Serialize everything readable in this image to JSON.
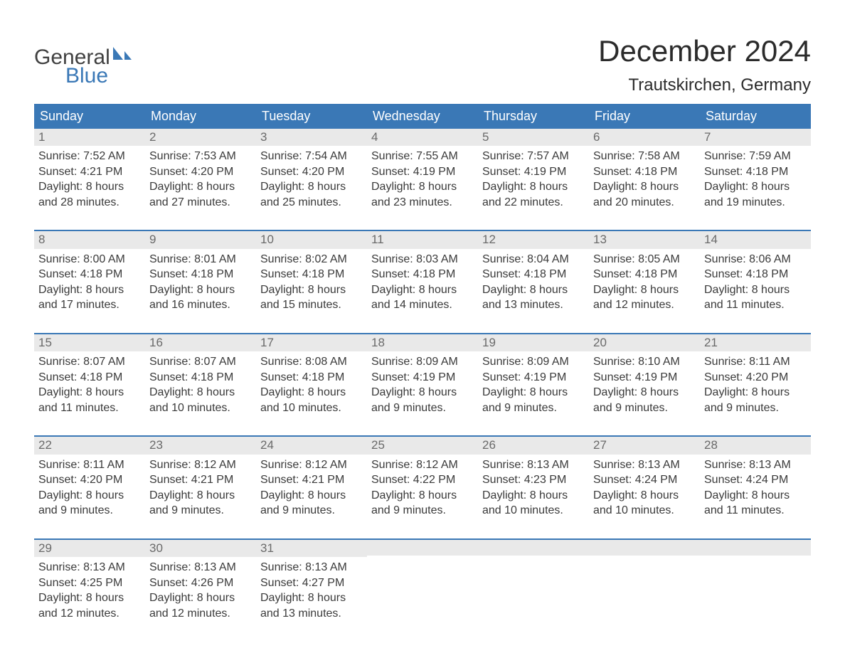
{
  "brand": {
    "word1": "General",
    "word2": "Blue",
    "flag_color": "#3a78b6",
    "text_color_1": "#414141",
    "text_color_2": "#3a78b6"
  },
  "header": {
    "title": "December 2024",
    "location": "Trautskirchen, Germany"
  },
  "colors": {
    "header_bg": "#3a78b6",
    "header_text": "#ffffff",
    "daynum_bg": "#e9e9e9",
    "daynum_text": "#6a6a6a",
    "body_text": "#3a3a3a",
    "page_bg": "#ffffff",
    "row_border": "#3a78b6"
  },
  "weekdays": [
    "Sunday",
    "Monday",
    "Tuesday",
    "Wednesday",
    "Thursday",
    "Friday",
    "Saturday"
  ],
  "weeks": [
    [
      {
        "n": "1",
        "sr": "7:52 AM",
        "ss": "4:21 PM",
        "dl": "8 hours and 28 minutes."
      },
      {
        "n": "2",
        "sr": "7:53 AM",
        "ss": "4:20 PM",
        "dl": "8 hours and 27 minutes."
      },
      {
        "n": "3",
        "sr": "7:54 AM",
        "ss": "4:20 PM",
        "dl": "8 hours and 25 minutes."
      },
      {
        "n": "4",
        "sr": "7:55 AM",
        "ss": "4:19 PM",
        "dl": "8 hours and 23 minutes."
      },
      {
        "n": "5",
        "sr": "7:57 AM",
        "ss": "4:19 PM",
        "dl": "8 hours and 22 minutes."
      },
      {
        "n": "6",
        "sr": "7:58 AM",
        "ss": "4:18 PM",
        "dl": "8 hours and 20 minutes."
      },
      {
        "n": "7",
        "sr": "7:59 AM",
        "ss": "4:18 PM",
        "dl": "8 hours and 19 minutes."
      }
    ],
    [
      {
        "n": "8",
        "sr": "8:00 AM",
        "ss": "4:18 PM",
        "dl": "8 hours and 17 minutes."
      },
      {
        "n": "9",
        "sr": "8:01 AM",
        "ss": "4:18 PM",
        "dl": "8 hours and 16 minutes."
      },
      {
        "n": "10",
        "sr": "8:02 AM",
        "ss": "4:18 PM",
        "dl": "8 hours and 15 minutes."
      },
      {
        "n": "11",
        "sr": "8:03 AM",
        "ss": "4:18 PM",
        "dl": "8 hours and 14 minutes."
      },
      {
        "n": "12",
        "sr": "8:04 AM",
        "ss": "4:18 PM",
        "dl": "8 hours and 13 minutes."
      },
      {
        "n": "13",
        "sr": "8:05 AM",
        "ss": "4:18 PM",
        "dl": "8 hours and 12 minutes."
      },
      {
        "n": "14",
        "sr": "8:06 AM",
        "ss": "4:18 PM",
        "dl": "8 hours and 11 minutes."
      }
    ],
    [
      {
        "n": "15",
        "sr": "8:07 AM",
        "ss": "4:18 PM",
        "dl": "8 hours and 11 minutes."
      },
      {
        "n": "16",
        "sr": "8:07 AM",
        "ss": "4:18 PM",
        "dl": "8 hours and 10 minutes."
      },
      {
        "n": "17",
        "sr": "8:08 AM",
        "ss": "4:18 PM",
        "dl": "8 hours and 10 minutes."
      },
      {
        "n": "18",
        "sr": "8:09 AM",
        "ss": "4:19 PM",
        "dl": "8 hours and 9 minutes."
      },
      {
        "n": "19",
        "sr": "8:09 AM",
        "ss": "4:19 PM",
        "dl": "8 hours and 9 minutes."
      },
      {
        "n": "20",
        "sr": "8:10 AM",
        "ss": "4:19 PM",
        "dl": "8 hours and 9 minutes."
      },
      {
        "n": "21",
        "sr": "8:11 AM",
        "ss": "4:20 PM",
        "dl": "8 hours and 9 minutes."
      }
    ],
    [
      {
        "n": "22",
        "sr": "8:11 AM",
        "ss": "4:20 PM",
        "dl": "8 hours and 9 minutes."
      },
      {
        "n": "23",
        "sr": "8:12 AM",
        "ss": "4:21 PM",
        "dl": "8 hours and 9 minutes."
      },
      {
        "n": "24",
        "sr": "8:12 AM",
        "ss": "4:21 PM",
        "dl": "8 hours and 9 minutes."
      },
      {
        "n": "25",
        "sr": "8:12 AM",
        "ss": "4:22 PM",
        "dl": "8 hours and 9 minutes."
      },
      {
        "n": "26",
        "sr": "8:13 AM",
        "ss": "4:23 PM",
        "dl": "8 hours and 10 minutes."
      },
      {
        "n": "27",
        "sr": "8:13 AM",
        "ss": "4:24 PM",
        "dl": "8 hours and 10 minutes."
      },
      {
        "n": "28",
        "sr": "8:13 AM",
        "ss": "4:24 PM",
        "dl": "8 hours and 11 minutes."
      }
    ],
    [
      {
        "n": "29",
        "sr": "8:13 AM",
        "ss": "4:25 PM",
        "dl": "8 hours and 12 minutes."
      },
      {
        "n": "30",
        "sr": "8:13 AM",
        "ss": "4:26 PM",
        "dl": "8 hours and 12 minutes."
      },
      {
        "n": "31",
        "sr": "8:13 AM",
        "ss": "4:27 PM",
        "dl": "8 hours and 13 minutes."
      },
      null,
      null,
      null,
      null
    ]
  ],
  "labels": {
    "sunrise": "Sunrise:",
    "sunset": "Sunset:",
    "daylight": "Daylight:"
  }
}
